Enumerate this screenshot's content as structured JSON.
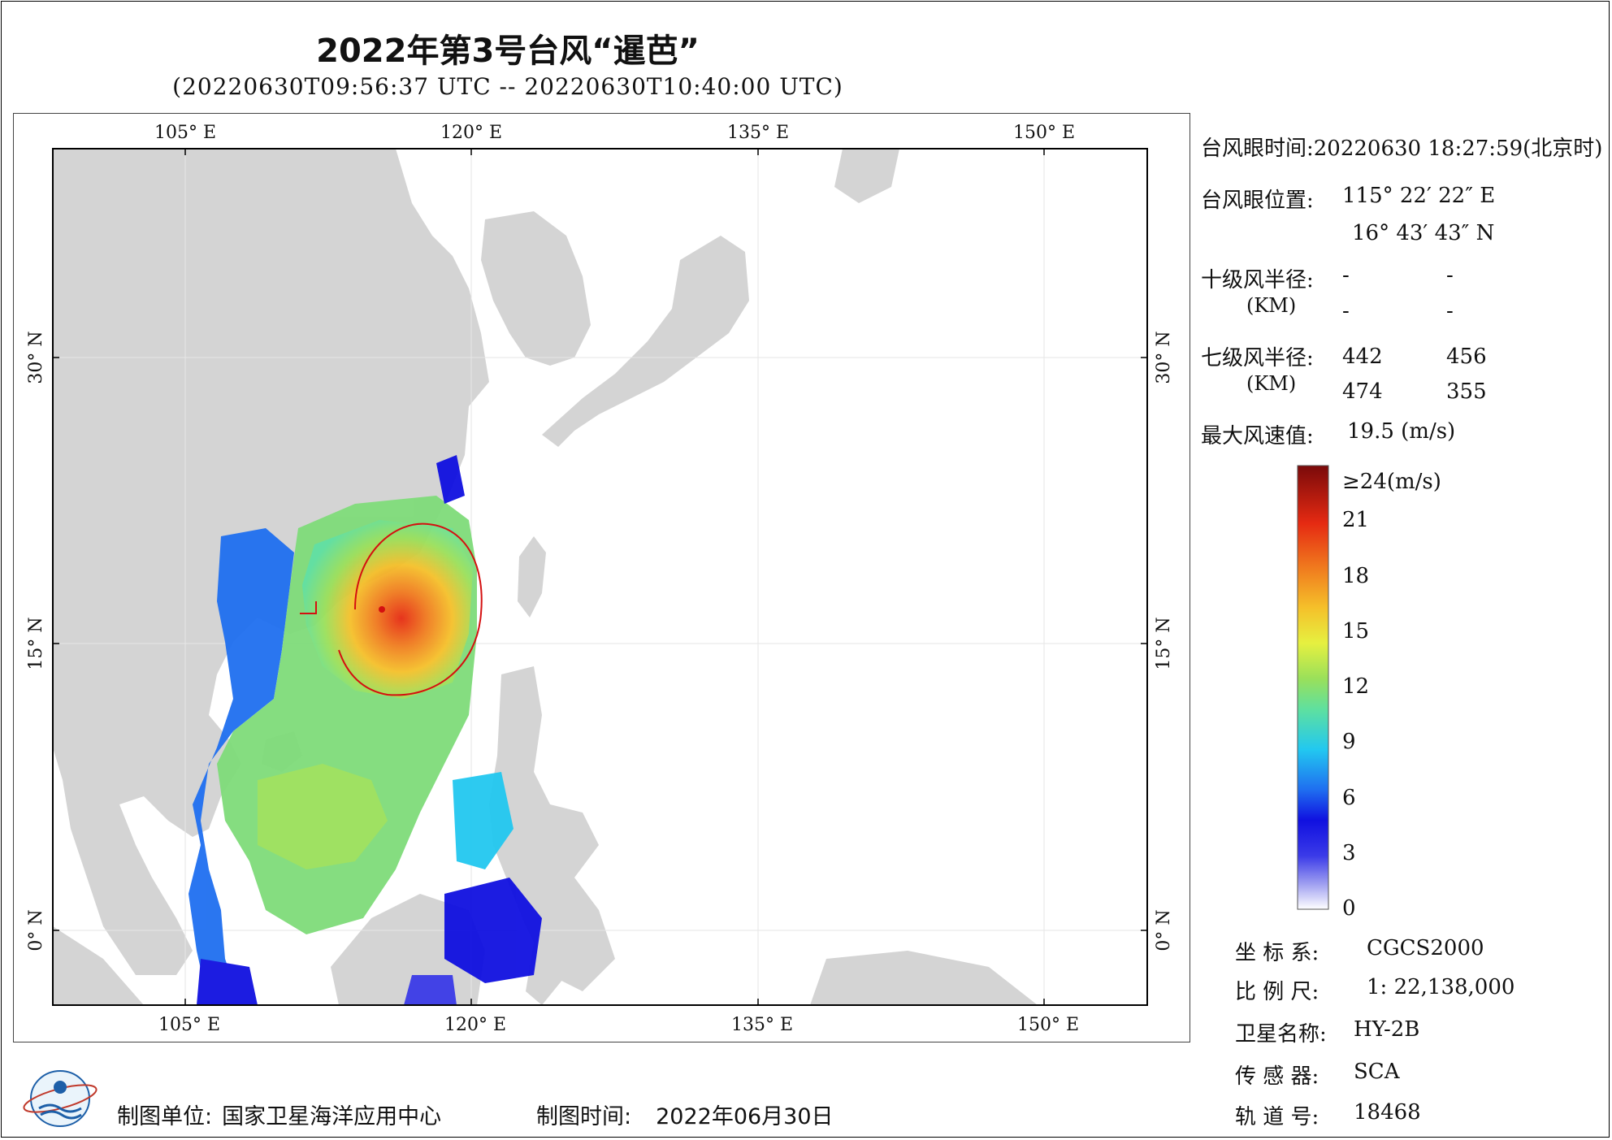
{
  "title": "2022年第3号台风“暹芭”",
  "subtitle": "(20220630T09:56:37 UTC -- 20220630T10:40:00 UTC)",
  "axes": {
    "lon_labels": [
      "105° E",
      "120° E",
      "135° E",
      "150° E"
    ],
    "lat_labels": [
      "30° N",
      "15° N",
      "0° N"
    ]
  },
  "info": {
    "eye_time_label": "台风眼时间:",
    "eye_time_value": "20220630 18:27:59(北京时)",
    "eye_pos_label": "台风眼位置:",
    "eye_lon": "115° 22′ 22″ E",
    "eye_lat": "16° 43′ 43″ N",
    "r10_label": "十级风半径:",
    "r10_values": [
      "-",
      "-",
      "-",
      "-"
    ],
    "km_label": "(KM)",
    "r7_label": "七级风半径:",
    "r7_values": [
      "442",
      "456",
      "474",
      "355"
    ],
    "max_label": "最大风速值:",
    "max_value": "19.5  (m/s)"
  },
  "legend": {
    "unit_label": "≥24(m/s)",
    "ticks": [
      "21",
      "18",
      "15",
      "12",
      "9",
      "6",
      "3",
      "0"
    ],
    "tick_values": [
      21,
      18,
      15,
      12,
      9,
      6,
      3,
      0
    ],
    "max": 24,
    "colors": [
      "#ffffff",
      "#9a9af0",
      "#3b3be8",
      "#1010e0",
      "#1f6ff0",
      "#22c8f0",
      "#5ee0a0",
      "#9ae05a",
      "#e6f040",
      "#f5c02a",
      "#f07a1e",
      "#e52a12",
      "#7a0a0a"
    ]
  },
  "meta": {
    "crs_label": "坐 标 系:",
    "crs_value": "CGCS2000",
    "scale_label": "比 例 尺:",
    "scale_value": "1: 22,138,000",
    "sat_label": "卫星名称:",
    "sat_value": "HY-2B",
    "sensor_label": "传 感 器:",
    "sensor_value": "SCA",
    "orbit_label": "轨 道 号:",
    "orbit_value": "18468"
  },
  "footer": {
    "maker_label": "制图单位:",
    "maker_value": "国家卫星海洋应用中心",
    "date_label": "制图时间:",
    "date_value": "2022年06月30日"
  }
}
